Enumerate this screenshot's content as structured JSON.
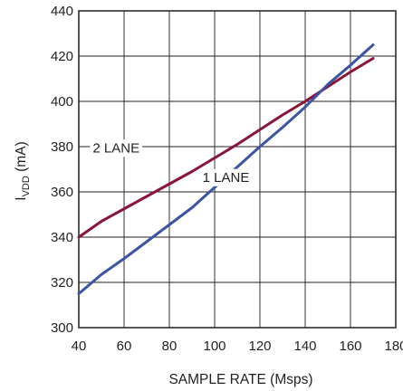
{
  "chart_data": {
    "type": "line",
    "xlabel": "SAMPLE RATE (Msps)",
    "ylabel": {
      "main": "I",
      "sub": "VDD",
      "unit": " (mA)"
    },
    "xlim": [
      40,
      180
    ],
    "ylim": [
      300,
      440
    ],
    "xticks": [
      40,
      60,
      80,
      100,
      120,
      140,
      160,
      180
    ],
    "yticks": [
      300,
      320,
      340,
      360,
      380,
      400,
      420,
      440
    ],
    "grid": true,
    "series": [
      {
        "name": "2 LANE",
        "color": "#8b1538",
        "x": [
          40,
          50,
          60,
          70,
          80,
          90,
          100,
          110,
          120,
          130,
          140,
          150,
          160,
          170
        ],
        "y": [
          340,
          347,
          352.5,
          358,
          363.5,
          369,
          375,
          381,
          387.5,
          394,
          400,
          406.5,
          413,
          419
        ]
      },
      {
        "name": "1 LANE",
        "color": "#3a55a4",
        "x": [
          40,
          50,
          60,
          70,
          80,
          90,
          100,
          110,
          120,
          130,
          140,
          150,
          160,
          170
        ],
        "y": [
          315,
          323.5,
          330.5,
          338,
          345.5,
          353,
          362,
          371,
          380,
          388.5,
          397.5,
          407.5,
          416,
          425
        ]
      }
    ],
    "annotations": [
      {
        "text": "2 LANE",
        "x": 56.5,
        "y": 379.5
      },
      {
        "text": "1 LANE",
        "x": 105,
        "y": 366.5
      }
    ]
  }
}
